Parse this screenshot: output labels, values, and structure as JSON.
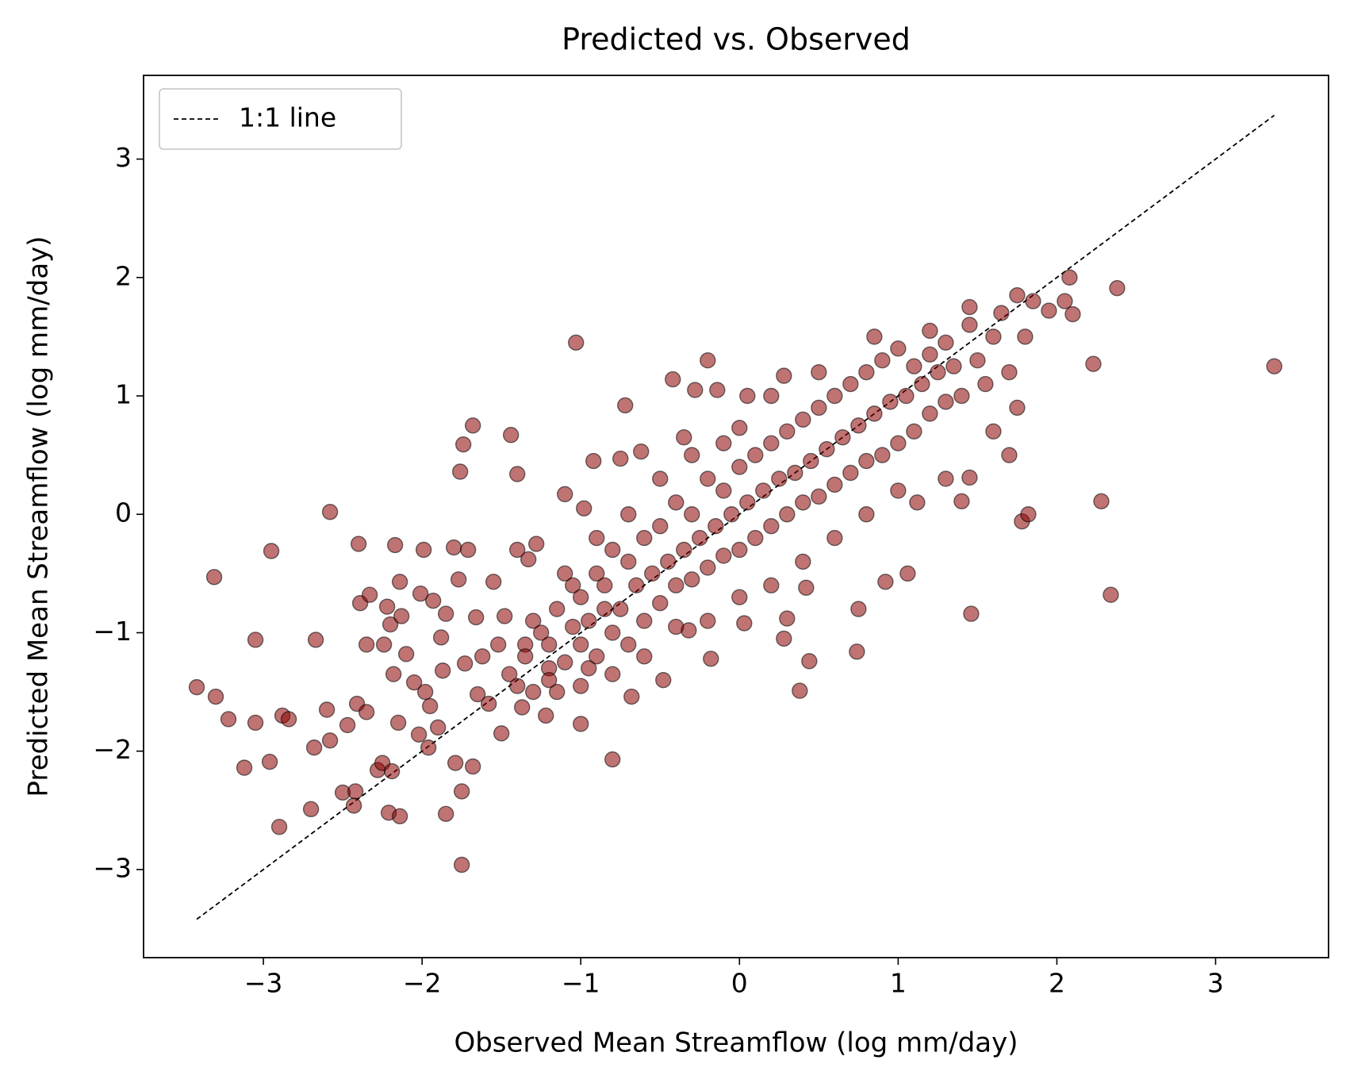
{
  "chart_data": {
    "type": "scatter",
    "title": "Predicted vs. Observed",
    "x_label": "Observed Mean Streamflow (log mm/day)",
    "y_label": "Predicted Mean Streamflow (log mm/day)",
    "xlim": [
      -3.755,
      3.712
    ],
    "ylim": [
      -3.744,
      3.707
    ],
    "xticks": [
      {
        "value": -3,
        "label": "−3"
      },
      {
        "value": -2,
        "label": "−2"
      },
      {
        "value": -1,
        "label": "−1"
      },
      0,
      1,
      2,
      3
    ],
    "yticks": [
      {
        "value": -3,
        "label": "−3"
      },
      {
        "value": -2,
        "label": "−2"
      },
      {
        "value": -1,
        "label": "−1"
      },
      0,
      1,
      2,
      3
    ],
    "legend": "upper left",
    "series": [
      {
        "name": "1:1 line",
        "type": "line",
        "dashed": true,
        "color": "#000000",
        "x": [
          -3.42,
          3.37
        ],
        "values": [
          -3.42,
          3.37
        ]
      },
      {
        "type": "scatter",
        "color": "#8b0000",
        "edgecolor": "#000000",
        "alpha": 0.55,
        "x": [
          -3.42,
          -3.31,
          -3.3,
          -3.22,
          -3.12,
          -3.05,
          -3.05,
          -2.96,
          -2.95,
          -2.9,
          -2.88,
          -2.84,
          -2.7,
          -2.68,
          -2.67,
          -2.58,
          -2.6,
          -2.58,
          -2.5,
          -2.47,
          -2.43,
          -2.42,
          -2.41,
          -2.4,
          -2.39,
          -2.35,
          -2.35,
          -2.33,
          -2.28,
          -2.25,
          -2.24,
          -2.22,
          -2.21,
          -2.2,
          -2.19,
          -2.18,
          -2.17,
          -2.15,
          -2.14,
          -2.14,
          -2.13,
          -2.1,
          -2.05,
          -2.02,
          -2.01,
          -1.99,
          -1.98,
          -1.96,
          -1.95,
          -1.93,
          -1.9,
          -1.88,
          -1.87,
          -1.85,
          -1.85,
          -1.8,
          -1.79,
          -1.77,
          -1.76,
          -1.75,
          -1.75,
          -1.74,
          -1.73,
          -1.71,
          -1.68,
          -1.68,
          -1.66,
          -1.65,
          -1.62,
          -1.58,
          -1.55,
          -1.52,
          -1.5,
          -1.48,
          -1.45,
          -1.44,
          -1.4,
          -1.4,
          -1.37,
          -1.35,
          -1.33,
          -1.3,
          -1.28,
          -1.22,
          -1.2,
          -1.15,
          -1.1,
          -1.05,
          -1.03,
          -1.0,
          -0.98,
          -0.95,
          -0.92,
          -0.85,
          -0.8,
          -0.75,
          -0.72,
          -0.68,
          -0.62,
          -0.48,
          -0.42,
          -0.35,
          -0.32,
          -0.28,
          -0.2,
          -0.18,
          -0.14,
          0.0,
          0.03,
          0.05,
          0.28,
          0.28,
          0.3,
          0.38,
          0.44,
          0.42,
          0.74,
          0.75,
          0.92,
          1.06,
          1.12,
          1.4,
          1.45,
          1.46,
          1.7,
          1.78,
          1.82,
          2.05,
          2.08,
          2.1,
          2.23,
          2.28,
          2.34,
          2.38,
          3.37,
          -1.4,
          -1.35,
          -1.3,
          -1.25,
          -1.2,
          -1.15,
          -1.1,
          -1.05,
          -1.0,
          -1.0,
          -0.95,
          -0.9,
          -0.9,
          -0.85,
          -0.8,
          -0.8,
          -0.75,
          -0.7,
          -0.7,
          -0.65,
          -0.6,
          -0.6,
          -0.55,
          -0.5,
          -0.5,
          -0.45,
          -0.4,
          -0.4,
          -0.35,
          -0.3,
          -0.3,
          -0.25,
          -0.2,
          -0.2,
          -0.15,
          -0.1,
          -0.1,
          -0.05,
          0.0,
          0.0,
          0.05,
          0.1,
          0.1,
          0.15,
          0.2,
          0.2,
          0.25,
          0.3,
          0.3,
          0.35,
          0.4,
          0.4,
          0.45,
          0.5,
          0.5,
          0.55,
          0.6,
          0.6,
          0.65,
          0.7,
          0.7,
          0.75,
          0.8,
          0.8,
          0.85,
          0.9,
          0.9,
          0.95,
          1.0,
          1.0,
          1.05,
          1.1,
          1.1,
          1.15,
          1.2,
          1.2,
          1.25,
          1.3,
          1.3,
          1.35,
          1.4,
          1.45,
          1.5,
          1.55,
          1.6,
          1.65,
          1.7,
          1.75,
          1.8,
          1.85,
          1.95,
          1.75,
          1.6,
          1.3,
          1.0,
          0.8,
          0.6,
          0.4,
          0.2,
          0.0,
          -0.2,
          -0.4,
          -0.6,
          -0.8,
          -1.0,
          -1.2,
          -0.3,
          -0.5,
          -0.7,
          -0.9,
          -1.1,
          0.2,
          0.5,
          0.85,
          -0.1,
          1.45,
          1.2
        ],
        "values": [
          -1.46,
          -0.53,
          -1.54,
          -1.73,
          -2.14,
          -1.06,
          -1.76,
          -2.09,
          -0.31,
          -2.64,
          -1.7,
          -1.73,
          -2.49,
          -1.97,
          -1.06,
          0.02,
          -1.65,
          -1.91,
          -2.35,
          -1.78,
          -2.46,
          -2.34,
          -1.6,
          -0.25,
          -0.75,
          -1.1,
          -1.67,
          -0.68,
          -2.16,
          -2.1,
          -1.1,
          -0.78,
          -2.52,
          -0.93,
          -2.17,
          -1.35,
          -0.26,
          -1.76,
          -2.55,
          -0.57,
          -0.86,
          -1.18,
          -1.42,
          -1.86,
          -0.67,
          -0.3,
          -1.5,
          -1.97,
          -1.62,
          -0.73,
          -1.8,
          -1.04,
          -1.32,
          -0.84,
          -2.53,
          -0.28,
          -2.1,
          -0.55,
          0.36,
          -2.96,
          -2.34,
          0.59,
          -1.26,
          -0.3,
          0.75,
          -2.13,
          -0.87,
          -1.52,
          -1.2,
          -1.6,
          -0.57,
          -1.1,
          -1.85,
          -0.86,
          -1.35,
          0.67,
          0.34,
          -0.3,
          -1.63,
          -1.1,
          -0.38,
          -0.9,
          -0.25,
          -1.7,
          -1.3,
          -1.5,
          0.17,
          -0.6,
          1.45,
          -1.77,
          0.05,
          -1.3,
          0.45,
          -0.8,
          -2.07,
          0.47,
          0.92,
          -1.54,
          0.53,
          -1.4,
          1.14,
          0.65,
          -0.98,
          1.05,
          1.3,
          -1.22,
          1.05,
          0.73,
          -0.92,
          1.0,
          1.17,
          -1.05,
          -0.88,
          -1.49,
          -1.24,
          -0.62,
          -1.16,
          -0.8,
          -0.57,
          -0.5,
          0.1,
          0.11,
          0.31,
          -0.84,
          0.5,
          -0.06,
          0.0,
          1.8,
          2.0,
          1.69,
          1.27,
          0.11,
          -0.68,
          1.91,
          1.25,
          -1.45,
          -1.2,
          -1.5,
          -1.0,
          -1.1,
          -0.8,
          -1.25,
          -0.95,
          -0.7,
          -1.1,
          -0.9,
          -0.5,
          -1.2,
          -0.6,
          -1.0,
          -0.3,
          -0.8,
          -0.4,
          -1.1,
          -0.6,
          -0.2,
          -0.9,
          -0.5,
          -0.1,
          -0.75,
          -0.4,
          0.1,
          -0.6,
          -0.3,
          0.0,
          -0.55,
          -0.2,
          0.3,
          -0.45,
          -0.1,
          0.2,
          -0.35,
          0.0,
          0.4,
          -0.3,
          0.1,
          0.5,
          -0.2,
          0.2,
          0.6,
          -0.1,
          0.3,
          0.7,
          0.0,
          0.35,
          0.8,
          0.1,
          0.45,
          0.9,
          0.15,
          0.55,
          1.0,
          0.25,
          0.65,
          1.1,
          0.35,
          0.75,
          1.2,
          0.45,
          0.85,
          1.3,
          0.5,
          0.95,
          1.4,
          0.6,
          1.0,
          1.25,
          0.7,
          1.1,
          1.35,
          0.85,
          1.2,
          1.45,
          0.95,
          1.25,
          1.0,
          1.6,
          1.3,
          1.1,
          1.5,
          1.7,
          1.2,
          1.85,
          1.5,
          1.8,
          1.72,
          0.9,
          0.7,
          0.3,
          0.2,
          0.0,
          -0.2,
          -0.4,
          -0.6,
          -0.7,
          -0.9,
          -0.95,
          -1.2,
          -1.35,
          -1.45,
          -1.4,
          0.5,
          0.3,
          0.0,
          -0.2,
          -0.5,
          1.0,
          1.2,
          1.5,
          0.6,
          1.75,
          1.55
        ]
      }
    ]
  }
}
